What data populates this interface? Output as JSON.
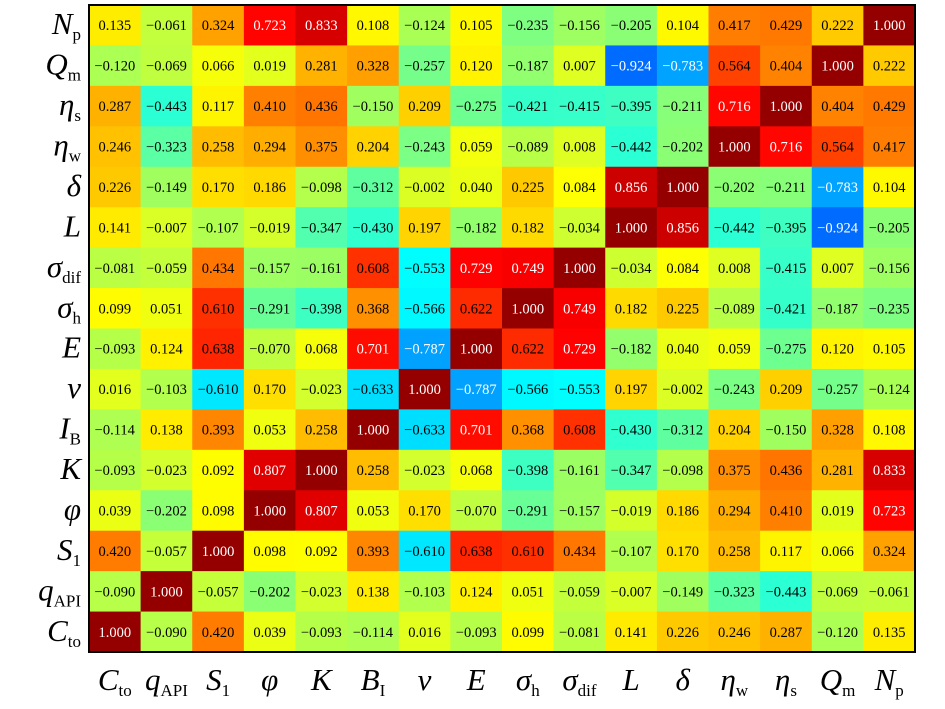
{
  "chart_data": {
    "type": "heatmap",
    "x_labels": [
      {
        "m": "C",
        "s": "to"
      },
      {
        "m": "q",
        "s": "API"
      },
      {
        "m": "S",
        "s": "1"
      },
      {
        "m": "φ",
        "s": ""
      },
      {
        "m": "K",
        "s": ""
      },
      {
        "m": "B",
        "s": "I"
      },
      {
        "m": "ν",
        "s": ""
      },
      {
        "m": "E",
        "s": ""
      },
      {
        "m": "σ",
        "s": "h"
      },
      {
        "m": "σ",
        "s": "dif"
      },
      {
        "m": "L",
        "s": ""
      },
      {
        "m": "δ",
        "s": ""
      },
      {
        "m": "η",
        "s": "w"
      },
      {
        "m": "η",
        "s": "s"
      },
      {
        "m": "Q",
        "s": "m"
      },
      {
        "m": "N",
        "s": "p"
      }
    ],
    "y_labels": [
      {
        "m": "N",
        "s": "p"
      },
      {
        "m": "Q",
        "s": "m"
      },
      {
        "m": "η",
        "s": "s"
      },
      {
        "m": "η",
        "s": "w"
      },
      {
        "m": "δ",
        "s": ""
      },
      {
        "m": "L",
        "s": ""
      },
      {
        "m": "σ",
        "s": "dif"
      },
      {
        "m": "σ",
        "s": "h"
      },
      {
        "m": "E",
        "s": ""
      },
      {
        "m": "ν",
        "s": ""
      },
      {
        "m": "I",
        "s": "B"
      },
      {
        "m": "K",
        "s": ""
      },
      {
        "m": "φ",
        "s": ""
      },
      {
        "m": "S",
        "s": "1"
      },
      {
        "m": "q",
        "s": "API"
      },
      {
        "m": "C",
        "s": "to"
      }
    ],
    "values": [
      [
        "0.135",
        "−0.061",
        "0.324",
        "0.723",
        "0.833",
        "0.108",
        "−0.124",
        "0.105",
        "−0.235",
        "−0.156",
        "−0.205",
        "0.104",
        "0.417",
        "0.429",
        "0.222",
        "1.000"
      ],
      [
        "−0.120",
        "−0.069",
        "0.066",
        "0.019",
        "0.281",
        "0.328",
        "−0.257",
        "0.120",
        "−0.187",
        "0.007",
        "−0.924",
        "−0.783",
        "0.564",
        "0.404",
        "1.000",
        "0.222"
      ],
      [
        "0.287",
        "−0.443",
        "0.117",
        "0.410",
        "0.436",
        "−0.150",
        "0.209",
        "−0.275",
        "−0.421",
        "−0.415",
        "−0.395",
        "−0.211",
        "0.716",
        "1.000",
        "0.404",
        "0.429"
      ],
      [
        "0.246",
        "−0.323",
        "0.258",
        "0.294",
        "0.375",
        "0.204",
        "−0.243",
        "0.059",
        "−0.089",
        "0.008",
        "−0.442",
        "−0.202",
        "1.000",
        "0.716",
        "0.564",
        "0.417"
      ],
      [
        "0.226",
        "−0.149",
        "0.170",
        "0.186",
        "−0.098",
        "−0.312",
        "−0.002",
        "0.040",
        "0.225",
        "0.084",
        "0.856",
        "1.000",
        "−0.202",
        "−0.211",
        "−0.783",
        "0.104"
      ],
      [
        "0.141",
        "−0.007",
        "−0.107",
        "−0.019",
        "−0.347",
        "−0.430",
        "0.197",
        "−0.182",
        "0.182",
        "−0.034",
        "1.000",
        "0.856",
        "−0.442",
        "−0.395",
        "−0.924",
        "−0.205"
      ],
      [
        "−0.081",
        "−0.059",
        "0.434",
        "−0.157",
        "−0.161",
        "0.608",
        "−0.553",
        "0.729",
        "0.749",
        "1.000",
        "−0.034",
        "0.084",
        "0.008",
        "−0.415",
        "0.007",
        "−0.156"
      ],
      [
        "0.099",
        "0.051",
        "0.610",
        "−0.291",
        "−0.398",
        "0.368",
        "−0.566",
        "0.622",
        "1.000",
        "0.749",
        "0.182",
        "0.225",
        "−0.089",
        "−0.421",
        "−0.187",
        "−0.235"
      ],
      [
        "−0.093",
        "0.124",
        "0.638",
        "−0.070",
        "0.068",
        "0.701",
        "−0.787",
        "1.000",
        "0.622",
        "0.729",
        "−0.182",
        "0.040",
        "0.059",
        "−0.275",
        "0.120",
        "0.105"
      ],
      [
        "0.016",
        "−0.103",
        "−0.610",
        "0.170",
        "−0.023",
        "−0.633",
        "1.000",
        "−0.787",
        "−0.566",
        "−0.553",
        "0.197",
        "−0.002",
        "−0.243",
        "0.209",
        "−0.257",
        "−0.124"
      ],
      [
        "−0.114",
        "0.138",
        "0.393",
        "0.053",
        "0.258",
        "1.000",
        "−0.633",
        "0.701",
        "0.368",
        "0.608",
        "−0.430",
        "−0.312",
        "0.204",
        "−0.150",
        "0.328",
        "0.108"
      ],
      [
        "−0.093",
        "−0.023",
        "0.092",
        "0.807",
        "1.000",
        "0.258",
        "−0.023",
        "0.068",
        "−0.398",
        "−0.161",
        "−0.347",
        "−0.098",
        "0.375",
        "0.436",
        "0.281",
        "0.833"
      ],
      [
        "0.039",
        "−0.202",
        "0.098",
        "1.000",
        "0.807",
        "0.053",
        "0.170",
        "−0.070",
        "−0.291",
        "−0.157",
        "−0.019",
        "0.186",
        "0.294",
        "0.410",
        "0.019",
        "0.723"
      ],
      [
        "0.420",
        "−0.057",
        "1.000",
        "0.098",
        "0.092",
        "0.393",
        "−0.610",
        "0.638",
        "0.610",
        "0.434",
        "−0.107",
        "0.170",
        "0.258",
        "0.117",
        "0.066",
        "0.324"
      ],
      [
        "−0.090",
        "1.000",
        "−0.057",
        "−0.202",
        "−0.023",
        "0.138",
        "−0.103",
        "0.124",
        "0.051",
        "−0.059",
        "−0.007",
        "−0.149",
        "−0.323",
        "−0.443",
        "−0.069",
        "−0.061"
      ],
      [
        "1.000",
        "−0.090",
        "0.420",
        "0.039",
        "−0.093",
        "−0.114",
        "0.016",
        "−0.093",
        "0.099",
        "−0.081",
        "0.141",
        "0.226",
        "0.246",
        "0.287",
        "−0.120",
        "0.135"
      ]
    ],
    "title": "",
    "xlabel": "",
    "ylabel": "",
    "value_range": [
      -1,
      1
    ],
    "colormap": "jet",
    "legend": "none",
    "grid": false
  }
}
